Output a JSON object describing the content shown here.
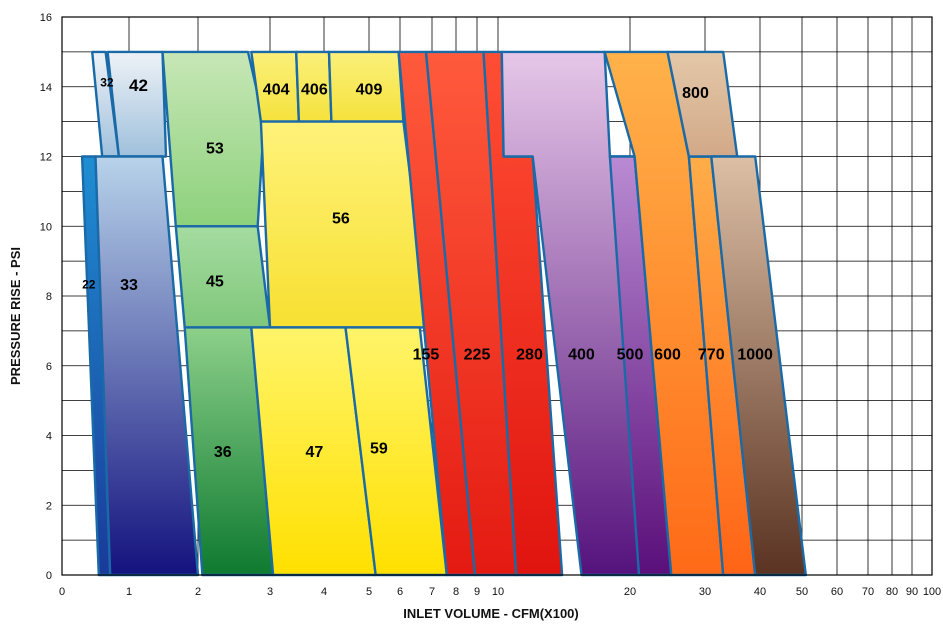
{
  "chart_data": {
    "type": "area",
    "title": "",
    "xlabel": "INLET VOLUME - CFM(X100)",
    "ylabel": "PRESSURE RISE - PSI",
    "xscale": "log",
    "xlim": [
      0,
      100
    ],
    "ylim": [
      0,
      16
    ],
    "grid": true,
    "x_ticks": [
      "0",
      "1",
      "2",
      "3",
      "4",
      "5",
      "6",
      "7",
      "8",
      "9",
      "10",
      "20",
      "30",
      "40",
      "50",
      "60",
      "70",
      "80",
      "90",
      "100"
    ],
    "y_ticks": [
      "0",
      "2",
      "4",
      "6",
      "8",
      "10",
      "12",
      "14",
      "16"
    ],
    "regions": [
      {
        "label": "32",
        "colors": [
          "#eef2f7",
          "#9fc0dc"
        ],
        "polygon": [
          [
            0.45,
            15
          ],
          [
            0.65,
            15
          ],
          [
            0.85,
            12
          ],
          [
            0.6,
            12
          ]
        ]
      },
      {
        "label": "42",
        "colors": [
          "#eef2f7",
          "#9fc0dc"
        ],
        "polygon": [
          [
            0.68,
            15
          ],
          [
            1.4,
            15
          ],
          [
            1.45,
            12
          ],
          [
            0.85,
            12
          ]
        ]
      },
      {
        "label": "22",
        "colors": [
          "#1f8ed2",
          "#1a3a9a"
        ],
        "polygon": [
          [
            0.3,
            12
          ],
          [
            0.5,
            12
          ],
          [
            0.72,
            0
          ],
          [
            0.55,
            0
          ]
        ]
      },
      {
        "label": "33",
        "colors": [
          "#b8d3ea",
          "#14127e"
        ],
        "polygon": [
          [
            0.5,
            12
          ],
          [
            1.4,
            12
          ],
          [
            2.0,
            0
          ],
          [
            0.72,
            0
          ]
        ]
      },
      {
        "label": "53",
        "colors": [
          "#c7e7b6",
          "#8dd17c"
        ],
        "polygon": [
          [
            1.4,
            15
          ],
          [
            2.65,
            15
          ],
          [
            2.9,
            13
          ],
          [
            2.8,
            10
          ],
          [
            1.6,
            10
          ]
        ]
      },
      {
        "label": "45",
        "colors": [
          "#a5dca0",
          "#80c77c"
        ],
        "polygon": [
          [
            1.6,
            10
          ],
          [
            2.8,
            10
          ],
          [
            3.0,
            7.1
          ],
          [
            1.75,
            7.1
          ]
        ]
      },
      {
        "label": "36",
        "colors": [
          "#8dd08a",
          "#0e7a30"
        ],
        "polygon": [
          [
            1.75,
            7.1
          ],
          [
            2.7,
            7.1
          ],
          [
            3.05,
            0
          ],
          [
            2.05,
            0
          ]
        ]
      },
      {
        "label": "404",
        "colors": [
          "#fbf07a",
          "#f5e23c"
        ],
        "polygon": [
          [
            2.7,
            15
          ],
          [
            3.45,
            15
          ],
          [
            3.5,
            13
          ],
          [
            2.85,
            13
          ]
        ]
      },
      {
        "label": "406",
        "colors": [
          "#fbf07a",
          "#f5e23c"
        ],
        "polygon": [
          [
            3.45,
            15
          ],
          [
            4.1,
            15
          ],
          [
            4.15,
            13
          ],
          [
            3.5,
            13
          ]
        ]
      },
      {
        "label": "409",
        "colors": [
          "#fbf07a",
          "#f5e23c"
        ],
        "polygon": [
          [
            4.1,
            15
          ],
          [
            5.95,
            15
          ],
          [
            6.1,
            13
          ],
          [
            4.15,
            13
          ]
        ]
      },
      {
        "label": "56",
        "colors": [
          "#fff27a",
          "#f7e031"
        ],
        "polygon": [
          [
            2.85,
            13
          ],
          [
            6.1,
            13
          ],
          [
            6.9,
            7.1
          ],
          [
            3.0,
            7.1
          ]
        ]
      },
      {
        "label": "47",
        "colors": [
          "#fff46a",
          "#ffe000"
        ],
        "polygon": [
          [
            2.7,
            7.1
          ],
          [
            4.45,
            7.1
          ],
          [
            5.2,
            0
          ],
          [
            3.05,
            0
          ]
        ]
      },
      {
        "label": "59",
        "colors": [
          "#fff46a",
          "#ffe000"
        ],
        "polygon": [
          [
            4.45,
            7.1
          ],
          [
            6.6,
            7.1
          ],
          [
            7.6,
            0
          ],
          [
            5.2,
            0
          ]
        ]
      },
      {
        "label": "155",
        "colors": [
          "#ff5a3c",
          "#e41a12"
        ],
        "polygon": [
          [
            5.95,
            15
          ],
          [
            6.8,
            15
          ],
          [
            8.9,
            0
          ],
          [
            7.6,
            0
          ]
        ]
      },
      {
        "label": "225",
        "colors": [
          "#ff5a3c",
          "#e41a12"
        ],
        "polygon": [
          [
            6.8,
            15
          ],
          [
            9.3,
            15
          ],
          [
            11.0,
            0
          ],
          [
            8.9,
            0
          ]
        ]
      },
      {
        "label": "280",
        "colors": [
          "#ff4e34",
          "#e0140f"
        ],
        "polygon": [
          [
            9.3,
            15
          ],
          [
            10.2,
            15
          ],
          [
            10.3,
            12
          ],
          [
            12.0,
            12
          ],
          [
            14.0,
            0
          ],
          [
            11.0,
            0
          ]
        ]
      },
      {
        "label": "400",
        "colors": [
          "#e6c7e8",
          "#55127d"
        ],
        "polygon": [
          [
            10.2,
            15
          ],
          [
            17.5,
            15
          ],
          [
            18.0,
            12
          ],
          [
            20.5,
            12
          ],
          [
            21.0,
            0
          ],
          [
            15.5,
            0
          ],
          [
            12.0,
            12
          ],
          [
            10.3,
            12
          ]
        ]
      },
      {
        "label": "500",
        "colors": [
          "#b98bd3",
          "#5a0f7a"
        ],
        "polygon": [
          [
            18.0,
            12
          ],
          [
            20.5,
            12
          ],
          [
            25.0,
            0
          ],
          [
            21.0,
            0
          ]
        ]
      },
      {
        "label": "600",
        "colors": [
          "#ffb24a",
          "#ff6a17"
        ],
        "polygon": [
          [
            17.5,
            15
          ],
          [
            24.5,
            15
          ],
          [
            27.5,
            12
          ],
          [
            33.0,
            0
          ],
          [
            25.0,
            0
          ],
          [
            20.5,
            12
          ]
        ]
      },
      {
        "label": "770",
        "colors": [
          "#ffad48",
          "#ff6416"
        ],
        "polygon": [
          [
            27.5,
            12
          ],
          [
            31.0,
            12
          ],
          [
            39.0,
            0
          ],
          [
            33.0,
            0
          ]
        ]
      },
      {
        "label": "800",
        "colors": [
          "#e3c8a8",
          "#d2a988"
        ],
        "polygon": [
          [
            24.5,
            15
          ],
          [
            33.0,
            15
          ],
          [
            35.5,
            12
          ],
          [
            27.5,
            12
          ]
        ]
      },
      {
        "label": "1000",
        "colors": [
          "#dcbfa5",
          "#5a3322"
        ],
        "polygon": [
          [
            31.0,
            12
          ],
          [
            39.0,
            12
          ],
          [
            51.0,
            0
          ],
          [
            39.0,
            0
          ]
        ]
      }
    ],
    "labels": [
      {
        "text": "32",
        "x": 0.67,
        "y": 14.1,
        "size": 12
      },
      {
        "text": "42",
        "x": 1.1,
        "y": 14.0,
        "size": 17
      },
      {
        "text": "22",
        "x": 0.4,
        "y": 8.3,
        "size": 12
      },
      {
        "text": "33",
        "x": 1.0,
        "y": 8.3,
        "size": 16
      },
      {
        "text": "53",
        "x": 2.2,
        "y": 12.2,
        "size": 16
      },
      {
        "text": "45",
        "x": 2.2,
        "y": 8.4,
        "size": 16
      },
      {
        "text": "36",
        "x": 2.3,
        "y": 3.5,
        "size": 16
      },
      {
        "text": "47",
        "x": 3.8,
        "y": 3.5,
        "size": 16
      },
      {
        "text": "59",
        "x": 5.3,
        "y": 3.6,
        "size": 16
      },
      {
        "text": "404",
        "x": 3.1,
        "y": 13.9,
        "size": 16
      },
      {
        "text": "406",
        "x": 3.8,
        "y": 13.9,
        "size": 16
      },
      {
        "text": "409",
        "x": 5.0,
        "y": 13.9,
        "size": 16
      },
      {
        "text": "56",
        "x": 4.35,
        "y": 10.2,
        "size": 16
      },
      {
        "text": "155",
        "x": 6.8,
        "y": 6.3,
        "size": 16
      },
      {
        "text": "225",
        "x": 9.0,
        "y": 6.3,
        "size": 16
      },
      {
        "text": "280",
        "x": 11.8,
        "y": 6.3,
        "size": 16
      },
      {
        "text": "400",
        "x": 15.5,
        "y": 6.3,
        "size": 16
      },
      {
        "text": "500",
        "x": 20.0,
        "y": 6.3,
        "size": 16
      },
      {
        "text": "600",
        "x": 24.5,
        "y": 6.3,
        "size": 16
      },
      {
        "text": "770",
        "x": 31.0,
        "y": 6.3,
        "size": 16
      },
      {
        "text": "1000",
        "x": 39.0,
        "y": 6.3,
        "size": 16
      },
      {
        "text": "800",
        "x": 28.5,
        "y": 13.8,
        "size": 16
      }
    ]
  }
}
